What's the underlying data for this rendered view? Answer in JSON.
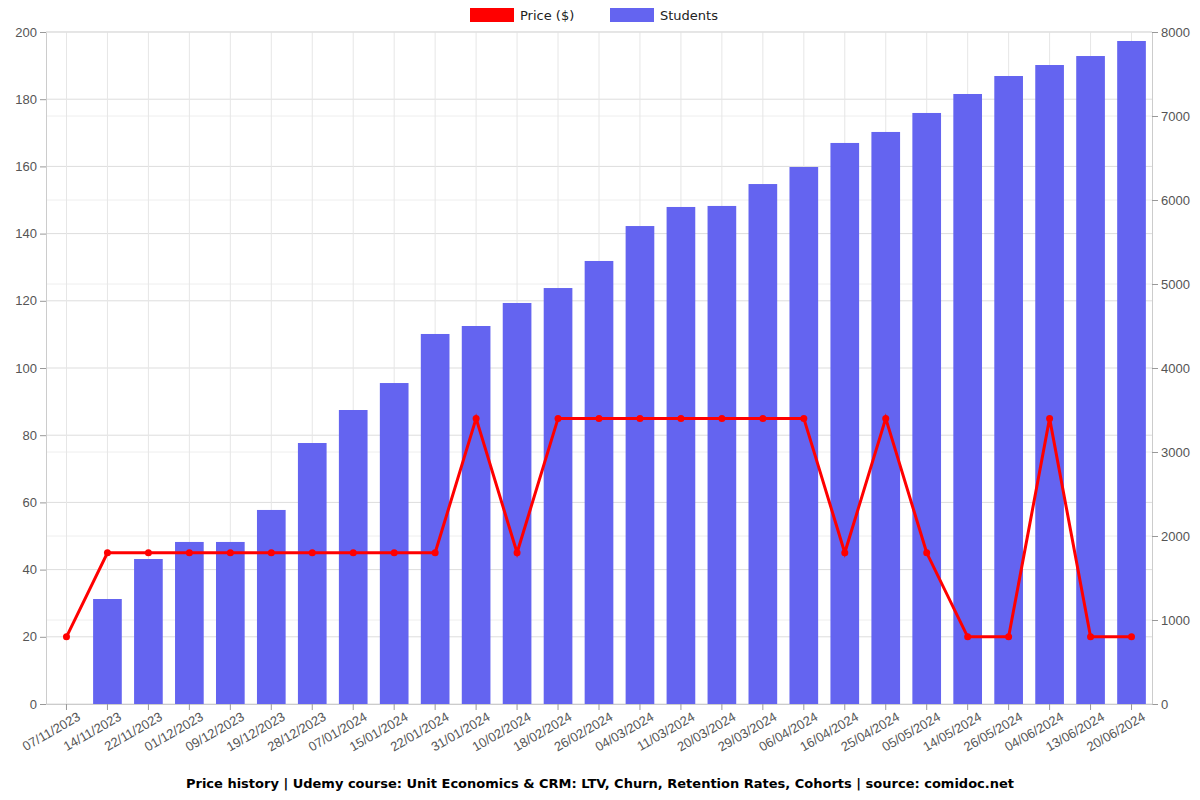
{
  "chart_data": {
    "type": "bar",
    "title": "Price history | Udemy course: Unit Economics & CRM: LTV, Churn, Retention Rates, Cohorts | source: comidoc.net",
    "categories": [
      "07/11/2023",
      "14/11/2023",
      "22/11/2023",
      "01/12/2023",
      "09/12/2023",
      "19/12/2023",
      "28/12/2023",
      "07/01/2024",
      "15/01/2024",
      "22/01/2024",
      "31/01/2024",
      "10/02/2024",
      "18/02/2024",
      "26/02/2024",
      "04/03/2024",
      "11/03/2024",
      "20/03/2024",
      "29/03/2024",
      "06/04/2024",
      "16/04/2024",
      "25/04/2024",
      "05/05/2024",
      "14/05/2024",
      "26/05/2024",
      "04/06/2024",
      "13/06/2024",
      "20/06/2024"
    ],
    "series": [
      {
        "name": "Price ($)",
        "type": "line",
        "color": "#ff0000",
        "marker": "circle",
        "values": [
          20,
          45,
          45,
          45,
          45,
          45,
          45,
          45,
          45,
          45,
          85,
          45,
          85,
          85,
          85,
          85,
          85,
          85,
          85,
          45,
          85,
          45,
          20,
          20,
          85,
          20,
          20
        ]
      },
      {
        "name": "Students",
        "type": "bar",
        "color": "#6464f0",
        "axis": "y2",
        "values": [
          null,
          1250,
          1726,
          1929,
          1929,
          2310,
          3107,
          3500,
          3821,
          4405,
          4500,
          4774,
          4952,
          5274,
          5690,
          5917,
          5929,
          6190,
          6393,
          6679,
          6810,
          7036,
          7262,
          7476,
          7607,
          7714,
          7893
        ]
      }
    ],
    "ylim": [
      0,
      200
    ],
    "yticks": [
      0,
      20,
      40,
      60,
      80,
      100,
      120,
      140,
      160,
      180,
      200
    ],
    "y2lim": [
      0,
      8000
    ],
    "y2ticks": [
      0,
      1000,
      2000,
      3000,
      4000,
      5000,
      6000,
      7000,
      8000
    ],
    "grid": true,
    "legend": "top"
  }
}
